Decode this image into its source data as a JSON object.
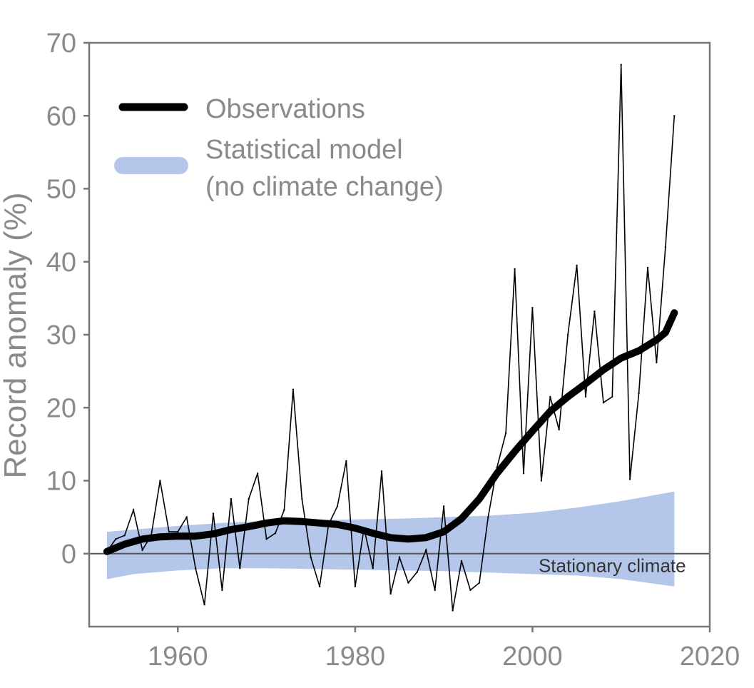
{
  "chart_data": {
    "type": "line",
    "title": "",
    "xlabel": "",
    "ylabel": "Record anomaly (%)",
    "xlim": [
      1950,
      2020
    ],
    "ylim": [
      -10,
      70
    ],
    "xticks": [
      1960,
      1980,
      2000,
      2020
    ],
    "yticks": [
      0,
      10,
      20,
      30,
      40,
      50,
      60,
      70
    ],
    "grid": false,
    "legend": {
      "location": "top-left",
      "entries": [
        {
          "label": "Observations"
        },
        {
          "label": "Statistical model",
          "label2": "(no climate change)"
        }
      ]
    },
    "annotations": [
      {
        "text": "Stationary climate",
        "x": 2009,
        "y": -2.5
      }
    ],
    "colors": {
      "observations": "#000000",
      "model_band": "#b4c6ea",
      "axis": "#777777",
      "baseline": "#555555"
    },
    "series": [
      {
        "name": "Observations (annual)",
        "x": [
          1952,
          1953,
          1954,
          1955,
          1956,
          1957,
          1958,
          1959,
          1960,
          1961,
          1962,
          1963,
          1964,
          1965,
          1966,
          1967,
          1968,
          1969,
          1970,
          1971,
          1972,
          1973,
          1974,
          1975,
          1976,
          1977,
          1978,
          1979,
          1980,
          1981,
          1982,
          1983,
          1984,
          1985,
          1986,
          1987,
          1988,
          1989,
          1990,
          1991,
          1992,
          1993,
          1994,
          1995,
          1996,
          1997,
          1998,
          1999,
          2000,
          2001,
          2002,
          2003,
          2004,
          2005,
          2006,
          2007,
          2008,
          2009,
          2010,
          2011,
          2012,
          2013,
          2014,
          2015,
          2016
        ],
        "values": [
          0.3,
          2.0,
          2.5,
          6.0,
          0.5,
          2.5,
          10.0,
          3.0,
          3.0,
          5.0,
          -2.0,
          -7.0,
          5.5,
          -5.0,
          7.5,
          -2.0,
          7.5,
          11.0,
          2.0,
          2.8,
          6.0,
          22.5,
          7.5,
          -0.5,
          -4.5,
          4.0,
          6.5,
          12.7,
          -4.5,
          3.5,
          -2.0,
          11.3,
          -5.5,
          -0.5,
          -4.0,
          -2.5,
          0.5,
          -5.0,
          6.5,
          -7.8,
          -1.0,
          -5.0,
          -4.0,
          5.0,
          11.8,
          16.5,
          39.0,
          11.0,
          33.7,
          10.0,
          21.5,
          17.0,
          30.0,
          39.5,
          21.5,
          33.2,
          20.7,
          21.5,
          67.0,
          10.2,
          22.0,
          39.2,
          26.2,
          42.0,
          60.0
        ]
      },
      {
        "name": "Observations (smoothed)",
        "x": [
          1952,
          1954,
          1956,
          1958,
          1960,
          1962,
          1964,
          1966,
          1968,
          1970,
          1972,
          1974,
          1976,
          1978,
          1980,
          1982,
          1984,
          1986,
          1988,
          1990,
          1992,
          1994,
          1996,
          1998,
          2000,
          2002,
          2004,
          2006,
          2008,
          2010,
          2012,
          2014,
          2015,
          2016
        ],
        "values": [
          0.3,
          1.3,
          2.0,
          2.3,
          2.4,
          2.4,
          2.7,
          3.3,
          3.7,
          4.2,
          4.5,
          4.4,
          4.2,
          4.0,
          3.5,
          2.8,
          2.2,
          2.0,
          2.2,
          3.0,
          4.8,
          7.5,
          11.0,
          14.0,
          16.8,
          19.5,
          21.5,
          23.3,
          25.2,
          26.8,
          27.8,
          29.3,
          30.3,
          33.0
        ]
      },
      {
        "name": "Statistical model (no climate change) range",
        "x": [
          1952,
          1955,
          1960,
          1965,
          1970,
          1975,
          1980,
          1985,
          1990,
          1995,
          2000,
          2005,
          2010,
          2016
        ],
        "upper": [
          3.0,
          3.3,
          3.8,
          4.2,
          4.5,
          4.6,
          4.7,
          4.8,
          5.0,
          5.2,
          5.6,
          6.3,
          7.2,
          8.5
        ],
        "lower": [
          -3.5,
          -2.8,
          -2.3,
          -2.0,
          -2.0,
          -2.1,
          -2.2,
          -2.3,
          -2.4,
          -2.6,
          -2.8,
          -3.0,
          -3.5,
          -4.5
        ]
      }
    ]
  }
}
